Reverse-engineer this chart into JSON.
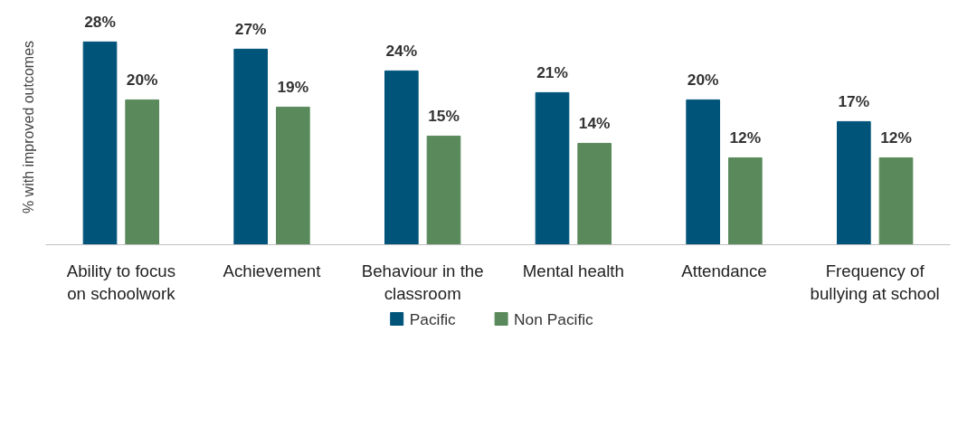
{
  "chart_data": {
    "type": "bar",
    "ylabel": "% with improved outcomes",
    "categories": [
      "Ability to focus on schoolwork",
      "Achievement",
      "Behaviour in the classroom",
      "Mental health",
      "Attendance",
      "Frequency of bullying at school"
    ],
    "series": [
      {
        "name": "Pacific",
        "color": "#00547a",
        "values": [
          28,
          27,
          24,
          21,
          20,
          17
        ],
        "value_labels": [
          "28%",
          "27%",
          "24%",
          "21%",
          "20%",
          "17%"
        ]
      },
      {
        "name": "Non Pacific",
        "color": "#5a8a5b",
        "values": [
          20,
          19,
          15,
          14,
          12,
          12
        ],
        "value_labels": [
          "20%",
          "19%",
          "15%",
          "14%",
          "12%",
          "12%"
        ]
      }
    ],
    "tick_labels": "x",
    "grid": false,
    "legend": "bottom"
  }
}
